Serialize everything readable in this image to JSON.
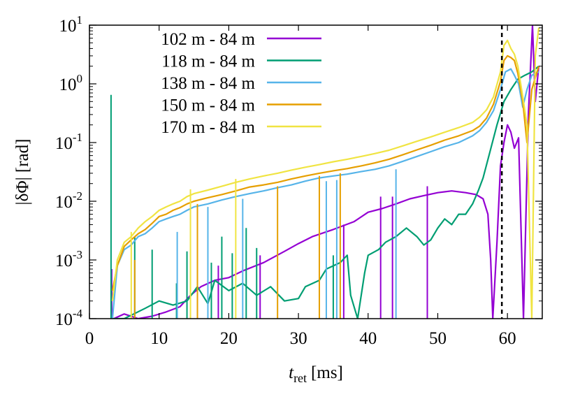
{
  "chart_data": {
    "type": "line",
    "ylabel": "|δΦ| [rad]",
    "xlabel_main": "t",
    "xlabel_sub": "ret",
    "xlabel_unit": "[ms]",
    "xlim": [
      0,
      65
    ],
    "ylim": [
      0.0001,
      10
    ],
    "yscale": "log",
    "x_ticks": [
      0,
      10,
      20,
      30,
      40,
      50,
      60
    ],
    "y_ticks": [
      {
        "value": 0.0001,
        "base": "10",
        "exp": "-4"
      },
      {
        "value": 0.001,
        "base": "10",
        "exp": "-3"
      },
      {
        "value": 0.01,
        "base": "10",
        "exp": "-2"
      },
      {
        "value": 0.1,
        "base": "10",
        "exp": "-1"
      },
      {
        "value": 1,
        "base": "10",
        "exp": "0"
      },
      {
        "value": 10,
        "base": "10",
        "exp": "1"
      }
    ],
    "grid": false,
    "legend_position": "top-left",
    "vline": {
      "x": 59.2,
      "style": "dashed",
      "color": "#000000"
    },
    "series": [
      {
        "name": "102 m - 84 m",
        "color": "#9400d3",
        "points": [
          [
            3.5,
            0.0001
          ],
          [
            5,
            0.00012
          ],
          [
            7,
            0.0001
          ],
          [
            9,
            0.00011
          ],
          [
            11,
            0.00013
          ],
          [
            13,
            0.00016
          ],
          [
            14.5,
            0.00025
          ],
          [
            16,
            0.00035
          ],
          [
            18,
            0.00045
          ],
          [
            20,
            0.0005
          ],
          [
            22,
            0.00065
          ],
          [
            25,
            0.0009
          ],
          [
            28,
            0.0014
          ],
          [
            30,
            0.0019
          ],
          [
            32,
            0.0025
          ],
          [
            35,
            0.0033
          ],
          [
            38,
            0.0045
          ],
          [
            40,
            0.0065
          ],
          [
            42,
            0.0075
          ],
          [
            44,
            0.009
          ],
          [
            46,
            0.011
          ],
          [
            48,
            0.0125
          ],
          [
            50,
            0.014
          ],
          [
            52,
            0.015
          ],
          [
            54,
            0.014
          ],
          [
            55.5,
            0.013
          ],
          [
            56.5,
            0.011
          ],
          [
            57.2,
            0.006
          ],
          [
            57.6,
            0.001
          ],
          [
            57.9,
            0.0001
          ],
          [
            58.5,
            0.002
          ],
          [
            59,
            0.04
          ],
          [
            59.5,
            0.1
          ],
          [
            60,
            0.2
          ],
          [
            60.5,
            0.15
          ],
          [
            61,
            0.08
          ],
          [
            61.6,
            0.12
          ],
          [
            62.3,
            0.0001
          ],
          [
            63,
            0.3
          ],
          [
            63.6,
            10
          ],
          [
            64,
            0.5
          ],
          [
            64.5,
            2
          ]
        ],
        "spikes": [
          [
            3.2,
            0.0007
          ],
          [
            18.5,
            0.0008
          ],
          [
            24.5,
            0.0012
          ],
          [
            36.5,
            0.004
          ],
          [
            41.8,
            0.012
          ],
          [
            43.5,
            0.012
          ],
          [
            48.5,
            0.018
          ],
          [
            57.3,
            1e-05
          ]
        ]
      },
      {
        "name": "118 m - 84 m",
        "color": "#009e73",
        "points": [
          [
            3.2,
            0.0001
          ],
          [
            5,
            0.0001
          ],
          [
            8,
            0.00015
          ],
          [
            10,
            0.0002
          ],
          [
            12,
            0.00017
          ],
          [
            14,
            0.0002
          ],
          [
            15.5,
            0.00035
          ],
          [
            17,
            0.00018
          ],
          [
            18,
            0.00045
          ],
          [
            20,
            0.0003
          ],
          [
            22,
            0.0004
          ],
          [
            24,
            0.00025
          ],
          [
            26,
            0.00035
          ],
          [
            28,
            0.0002
          ],
          [
            30,
            0.00022
          ],
          [
            31,
            0.00035
          ],
          [
            33,
            0.00045
          ],
          [
            34,
            0.0007
          ],
          [
            36,
            0.0009
          ],
          [
            37,
            0.0012
          ],
          [
            37.5,
            0.00025
          ],
          [
            38.5,
            0.0001
          ],
          [
            39.5,
            0.0006
          ],
          [
            40,
            0.0012
          ],
          [
            41.5,
            0.0015
          ],
          [
            42.5,
            0.002
          ],
          [
            44,
            0.0025
          ],
          [
            45.5,
            0.0035
          ],
          [
            47,
            0.0025
          ],
          [
            48,
            0.0018
          ],
          [
            49,
            0.0022
          ],
          [
            50,
            0.0035
          ],
          [
            51,
            0.005
          ],
          [
            52,
            0.004
          ],
          [
            53,
            0.006
          ],
          [
            54,
            0.006
          ],
          [
            55,
            0.009
          ],
          [
            55.8,
            0.015
          ],
          [
            56.5,
            0.025
          ],
          [
            57.5,
            0.07
          ],
          [
            58.5,
            0.2
          ],
          [
            59.5,
            0.5
          ],
          [
            60.5,
            0.8
          ],
          [
            61.5,
            1.2
          ],
          [
            62.5,
            1.4
          ],
          [
            63.5,
            1.6
          ],
          [
            64.5,
            2
          ]
        ],
        "spikes": [
          [
            3.1,
            0.65
          ],
          [
            3.25,
            0.0001
          ],
          [
            6.5,
            0.0025
          ],
          [
            9,
            0.0015
          ],
          [
            12.5,
            0.0004
          ],
          [
            14,
            0.0014
          ],
          [
            17.5,
            0.0009
          ],
          [
            19,
            0.0025
          ],
          [
            20.5,
            0.0013
          ],
          [
            22.5,
            0.0035
          ],
          [
            24,
            0.0016
          ],
          [
            35,
            0.0012
          ]
        ]
      },
      {
        "name": "138 m - 84 m",
        "color": "#56b4e9",
        "points": [
          [
            3.3,
            0.0001
          ],
          [
            4,
            0.0008
          ],
          [
            5,
            0.0015
          ],
          [
            6,
            0.0018
          ],
          [
            7,
            0.0025
          ],
          [
            8,
            0.0028
          ],
          [
            9,
            0.0035
          ],
          [
            10,
            0.0045
          ],
          [
            11,
            0.005
          ],
          [
            12,
            0.0055
          ],
          [
            13,
            0.006
          ],
          [
            14,
            0.007
          ],
          [
            15,
            0.008
          ],
          [
            17,
            0.009
          ],
          [
            19,
            0.0105
          ],
          [
            21,
            0.012
          ],
          [
            23,
            0.0135
          ],
          [
            25,
            0.015
          ],
          [
            27,
            0.017
          ],
          [
            29,
            0.019
          ],
          [
            31,
            0.022
          ],
          [
            33,
            0.025
          ],
          [
            35,
            0.027
          ],
          [
            37,
            0.029
          ],
          [
            39,
            0.032
          ],
          [
            41,
            0.035
          ],
          [
            43,
            0.04
          ],
          [
            45,
            0.048
          ],
          [
            47,
            0.058
          ],
          [
            49,
            0.07
          ],
          [
            51,
            0.085
          ],
          [
            53,
            0.1
          ],
          [
            55,
            0.13
          ],
          [
            56,
            0.16
          ],
          [
            57,
            0.22
          ],
          [
            58,
            0.35
          ],
          [
            59,
            0.8
          ],
          [
            59.7,
            1.6
          ],
          [
            60.5,
            1.8
          ],
          [
            61,
            1.4
          ],
          [
            61.6,
            1
          ],
          [
            62.2,
            0.4
          ],
          [
            62.8,
            0.8
          ],
          [
            63.5,
            1.4
          ],
          [
            64.5,
            1.6
          ]
        ],
        "spikes": [
          [
            12.6,
            0.003
          ],
          [
            17,
            0.008
          ],
          [
            22,
            0.011
          ],
          [
            34,
            0.022
          ],
          [
            35.5,
            0.023
          ],
          [
            44,
            0.035
          ]
        ]
      },
      {
        "name": "150 m - 84 m",
        "color": "#e69f00",
        "points": [
          [
            3.3,
            0.0003
          ],
          [
            4,
            0.0008
          ],
          [
            5,
            0.0017
          ],
          [
            6,
            0.0022
          ],
          [
            7,
            0.0028
          ],
          [
            8,
            0.0033
          ],
          [
            9,
            0.0042
          ],
          [
            10,
            0.0055
          ],
          [
            11,
            0.006
          ],
          [
            12,
            0.007
          ],
          [
            13,
            0.0078
          ],
          [
            14,
            0.009
          ],
          [
            15,
            0.01
          ],
          [
            17,
            0.0115
          ],
          [
            19,
            0.013
          ],
          [
            21,
            0.015
          ],
          [
            23,
            0.0175
          ],
          [
            25,
            0.019
          ],
          [
            27,
            0.021
          ],
          [
            29,
            0.024
          ],
          [
            31,
            0.027
          ],
          [
            33,
            0.03
          ],
          [
            35,
            0.033
          ],
          [
            37,
            0.036
          ],
          [
            39,
            0.04
          ],
          [
            41,
            0.045
          ],
          [
            43,
            0.052
          ],
          [
            45,
            0.062
          ],
          [
            47,
            0.075
          ],
          [
            49,
            0.09
          ],
          [
            51,
            0.11
          ],
          [
            53,
            0.13
          ],
          [
            55,
            0.16
          ],
          [
            56,
            0.19
          ],
          [
            57,
            0.26
          ],
          [
            58,
            0.45
          ],
          [
            59,
            1.1
          ],
          [
            59.5,
            2.5
          ],
          [
            60,
            3
          ],
          [
            60.5,
            2.8
          ],
          [
            61,
            2.5
          ],
          [
            61.5,
            1.5
          ],
          [
            62.2,
            0.5
          ],
          [
            62.8,
            0.1
          ],
          [
            63.5,
            0.8
          ],
          [
            64.5,
            2
          ]
        ],
        "spikes": [
          [
            6.5,
            0.001
          ],
          [
            15.5,
            0.009
          ],
          [
            27,
            0.018
          ],
          [
            33,
            0.027
          ],
          [
            36,
            0.03
          ]
        ]
      },
      {
        "name": "170 m - 84 m",
        "color": "#f0e442",
        "points": [
          [
            3.3,
            0.0002
          ],
          [
            4,
            0.001
          ],
          [
            5,
            0.002
          ],
          [
            6,
            0.0025
          ],
          [
            7,
            0.0035
          ],
          [
            8,
            0.0045
          ],
          [
            9,
            0.0055
          ],
          [
            10,
            0.007
          ],
          [
            11,
            0.008
          ],
          [
            12,
            0.009
          ],
          [
            13,
            0.01
          ],
          [
            14,
            0.012
          ],
          [
            15,
            0.0135
          ],
          [
            17,
            0.0155
          ],
          [
            19,
            0.018
          ],
          [
            21,
            0.021
          ],
          [
            23,
            0.024
          ],
          [
            25,
            0.027
          ],
          [
            27,
            0.03
          ],
          [
            29,
            0.034
          ],
          [
            31,
            0.038
          ],
          [
            33,
            0.042
          ],
          [
            35,
            0.047
          ],
          [
            37,
            0.052
          ],
          [
            39,
            0.058
          ],
          [
            41,
            0.065
          ],
          [
            43,
            0.074
          ],
          [
            45,
            0.088
          ],
          [
            47,
            0.105
          ],
          [
            49,
            0.125
          ],
          [
            51,
            0.15
          ],
          [
            53,
            0.18
          ],
          [
            55,
            0.22
          ],
          [
            56,
            0.27
          ],
          [
            57,
            0.36
          ],
          [
            58,
            0.6
          ],
          [
            59,
            1.6
          ],
          [
            59.5,
            4.5
          ],
          [
            60,
            5.5
          ],
          [
            60.5,
            4
          ],
          [
            61,
            3.2
          ],
          [
            61.5,
            2
          ],
          [
            62.2,
            0.6
          ],
          [
            62.8,
            0.2
          ],
          [
            63.5,
            0.0001
          ],
          [
            64,
            3
          ],
          [
            64.5,
            9
          ]
        ],
        "spikes": [
          [
            6,
            0.003
          ],
          [
            14.5,
            0.016
          ],
          [
            21,
            0.024
          ]
        ]
      }
    ]
  }
}
